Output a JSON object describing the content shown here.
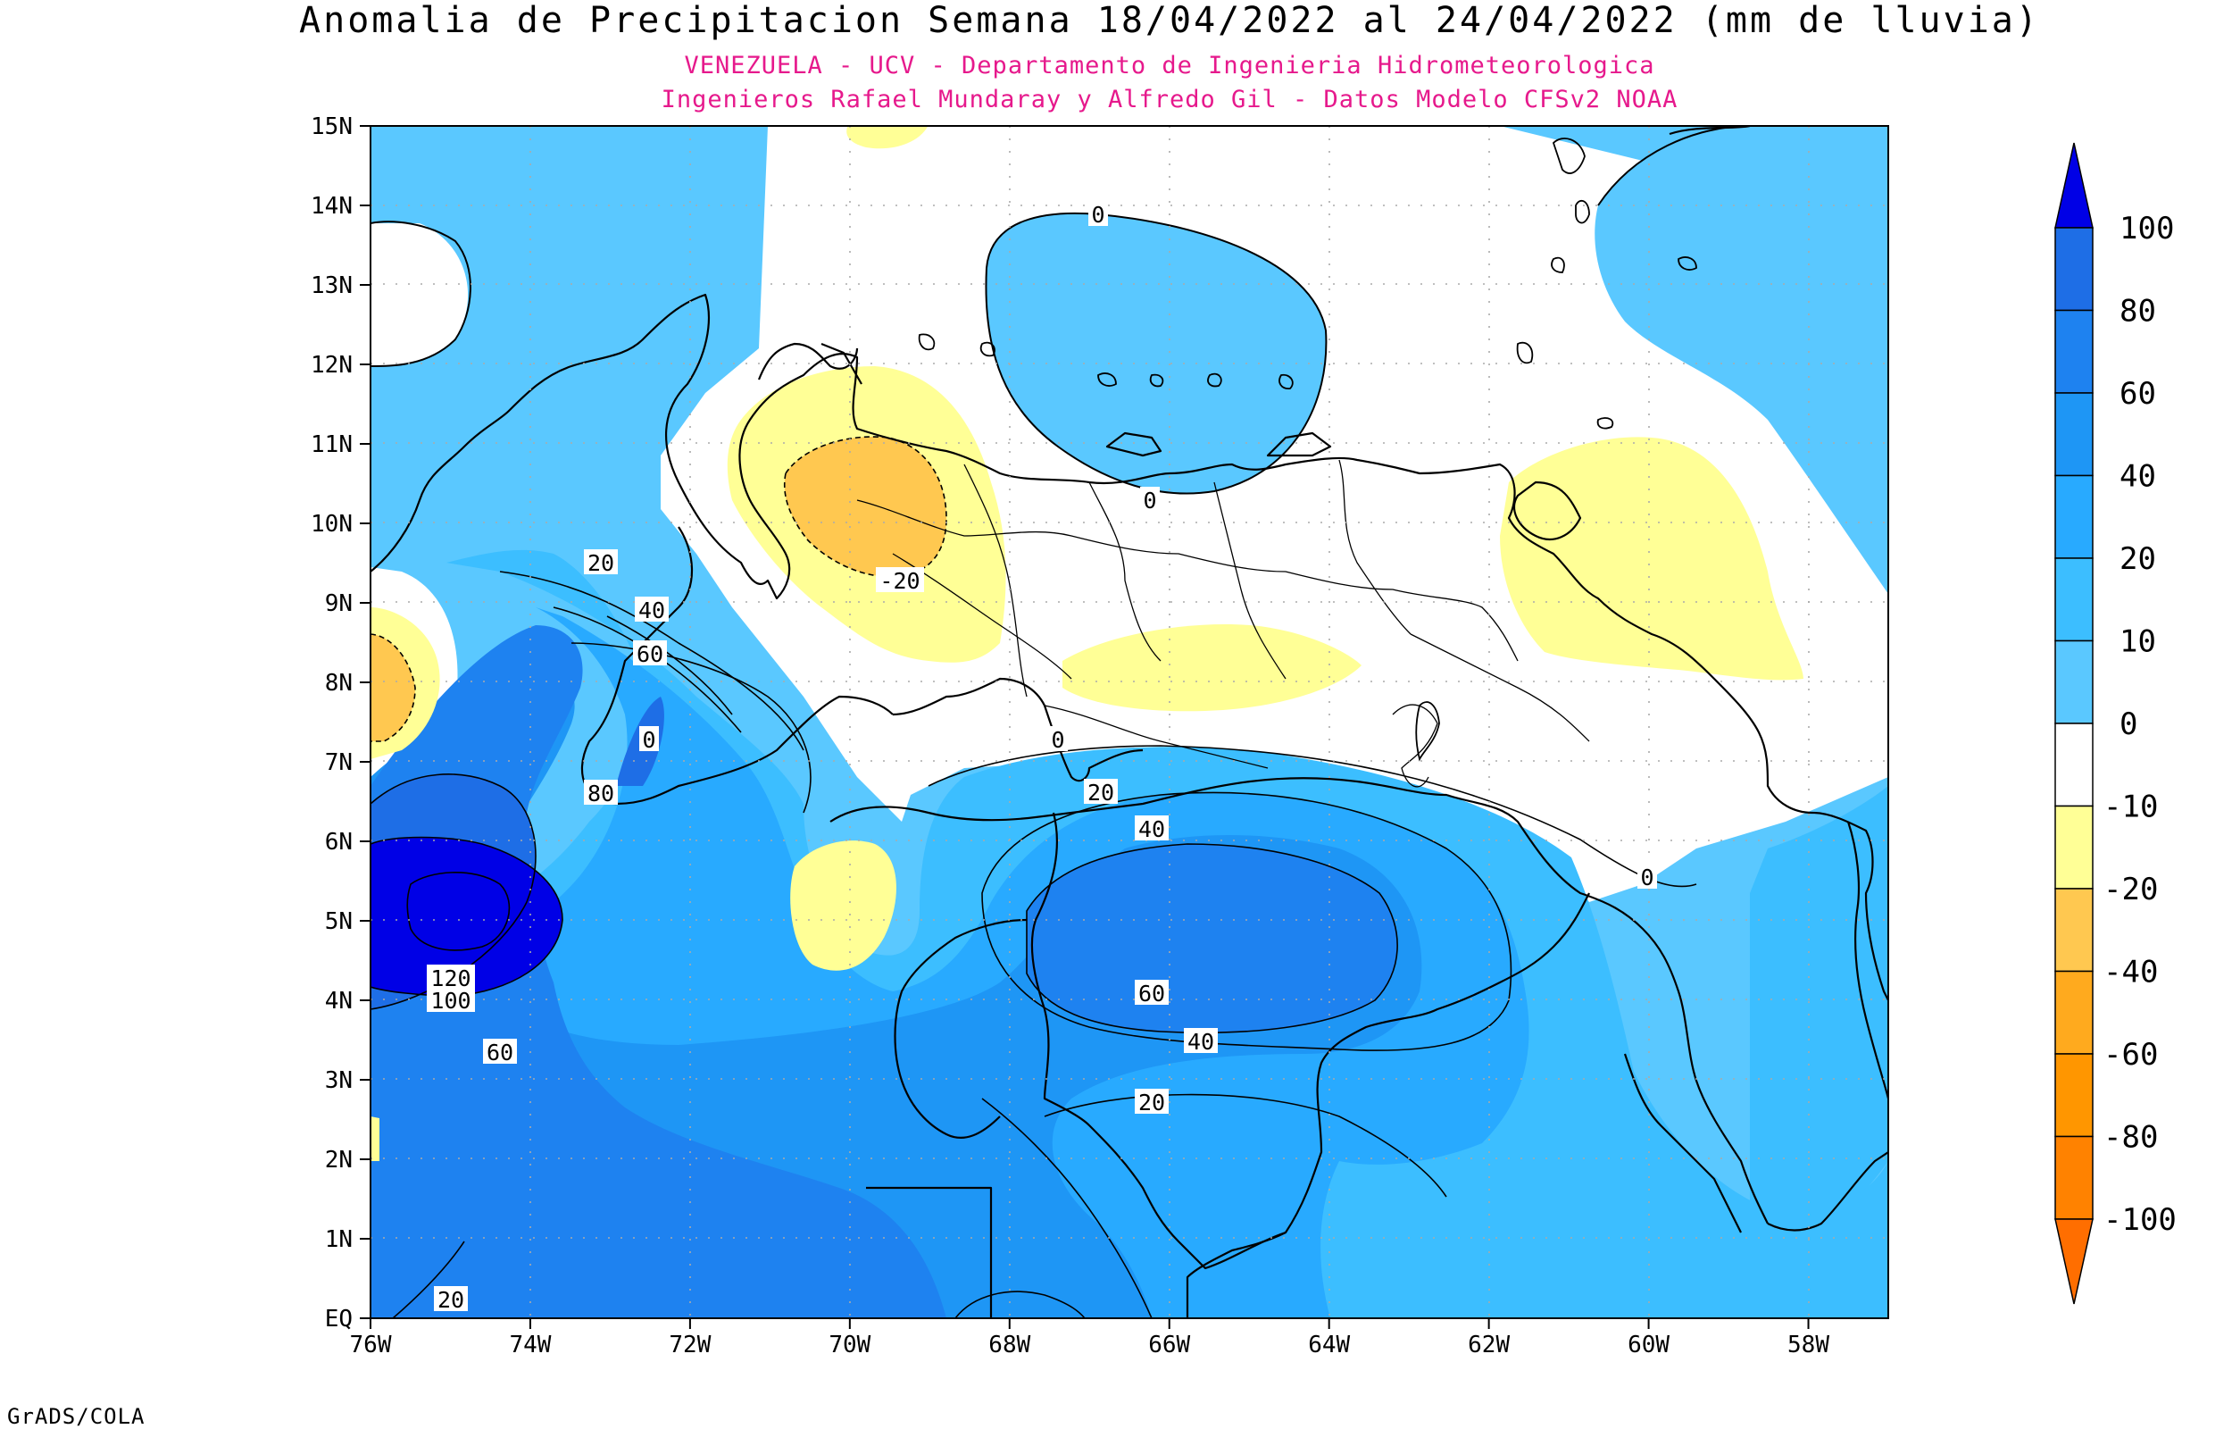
{
  "title": "Anomalia de Precipitacion Semana 18/04/2022 al 24/04/2022 (mm de lluvia)",
  "subtitle_1": "VENEZUELA - UCV - Departamento de Ingenieria Hidrometeorologica",
  "subtitle_2": "Ingenieros Rafael Mundaray y Alfredo Gil - Datos Modelo CFSv2 NOAA",
  "footer": "GrADS/COLA",
  "lat_labels": [
    "15N",
    "14N",
    "13N",
    "12N",
    "11N",
    "10N",
    "9N",
    "8N",
    "7N",
    "6N",
    "5N",
    "4N",
    "3N",
    "2N",
    "1N",
    "EQ"
  ],
  "lon_labels": [
    "76W",
    "74W",
    "72W",
    "70W",
    "68W",
    "66W",
    "64W",
    "62W",
    "60W",
    "58W"
  ],
  "colorbar": {
    "labels": [
      "100",
      "80",
      "60",
      "40",
      "20",
      "10",
      "0",
      "-10",
      "-20",
      "-40",
      "-60",
      "-80",
      "-100"
    ],
    "colors": [
      "#0000e6",
      "#1e6ee6",
      "#1e82f0",
      "#1e96f5",
      "#28aaff",
      "#3cbeff",
      "#5ac8ff",
      "#ffffff",
      "#ffff96",
      "#ffc850",
      "#ffaa1e",
      "#ff9600",
      "#ff8200",
      "#ff6e00"
    ]
  },
  "contour_labels": [
    "0",
    "0",
    "0",
    "0",
    "-20",
    "20",
    "40",
    "60",
    "80",
    "120",
    "100",
    "60",
    "20",
    "20",
    "40",
    "60",
    "40",
    "20",
    "0"
  ]
}
